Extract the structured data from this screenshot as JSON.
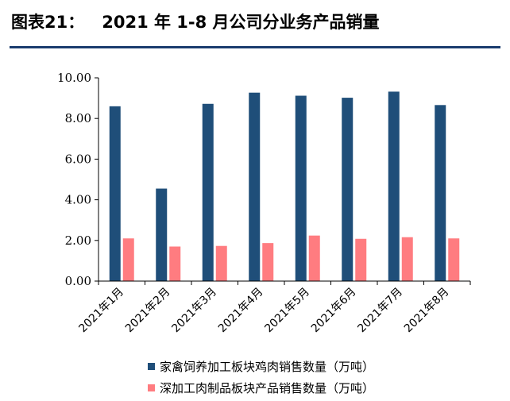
{
  "header": {
    "prefix": "图表21：",
    "title": "2021 年 1-8 月公司分业务产品销量"
  },
  "chart_data": {
    "type": "bar",
    "title": "2021 年 1-8 月公司分业务产品销量",
    "categories": [
      "2021年1月",
      "2021年2月",
      "2021年3月",
      "2021年4月",
      "2021年5月",
      "2021年6月",
      "2021年7月",
      "2021年8月"
    ],
    "series": [
      {
        "name": "家禽饲养加工板块鸡肉销售数量（万吨）",
        "color": "#1f4e79",
        "values": [
          8.6,
          4.55,
          8.72,
          9.27,
          9.12,
          9.02,
          9.32,
          8.66
        ]
      },
      {
        "name": "深加工肉制品板块产品销售数量（万吨）",
        "color": "#ff7c80",
        "values": [
          2.1,
          1.7,
          1.73,
          1.87,
          2.24,
          2.08,
          2.16,
          2.1
        ]
      }
    ],
    "ylim": [
      0,
      10
    ],
    "yticks": [
      "0.00",
      "2.00",
      "4.00",
      "6.00",
      "8.00",
      "10.00"
    ],
    "grid": false,
    "legend_position": "bottom"
  }
}
